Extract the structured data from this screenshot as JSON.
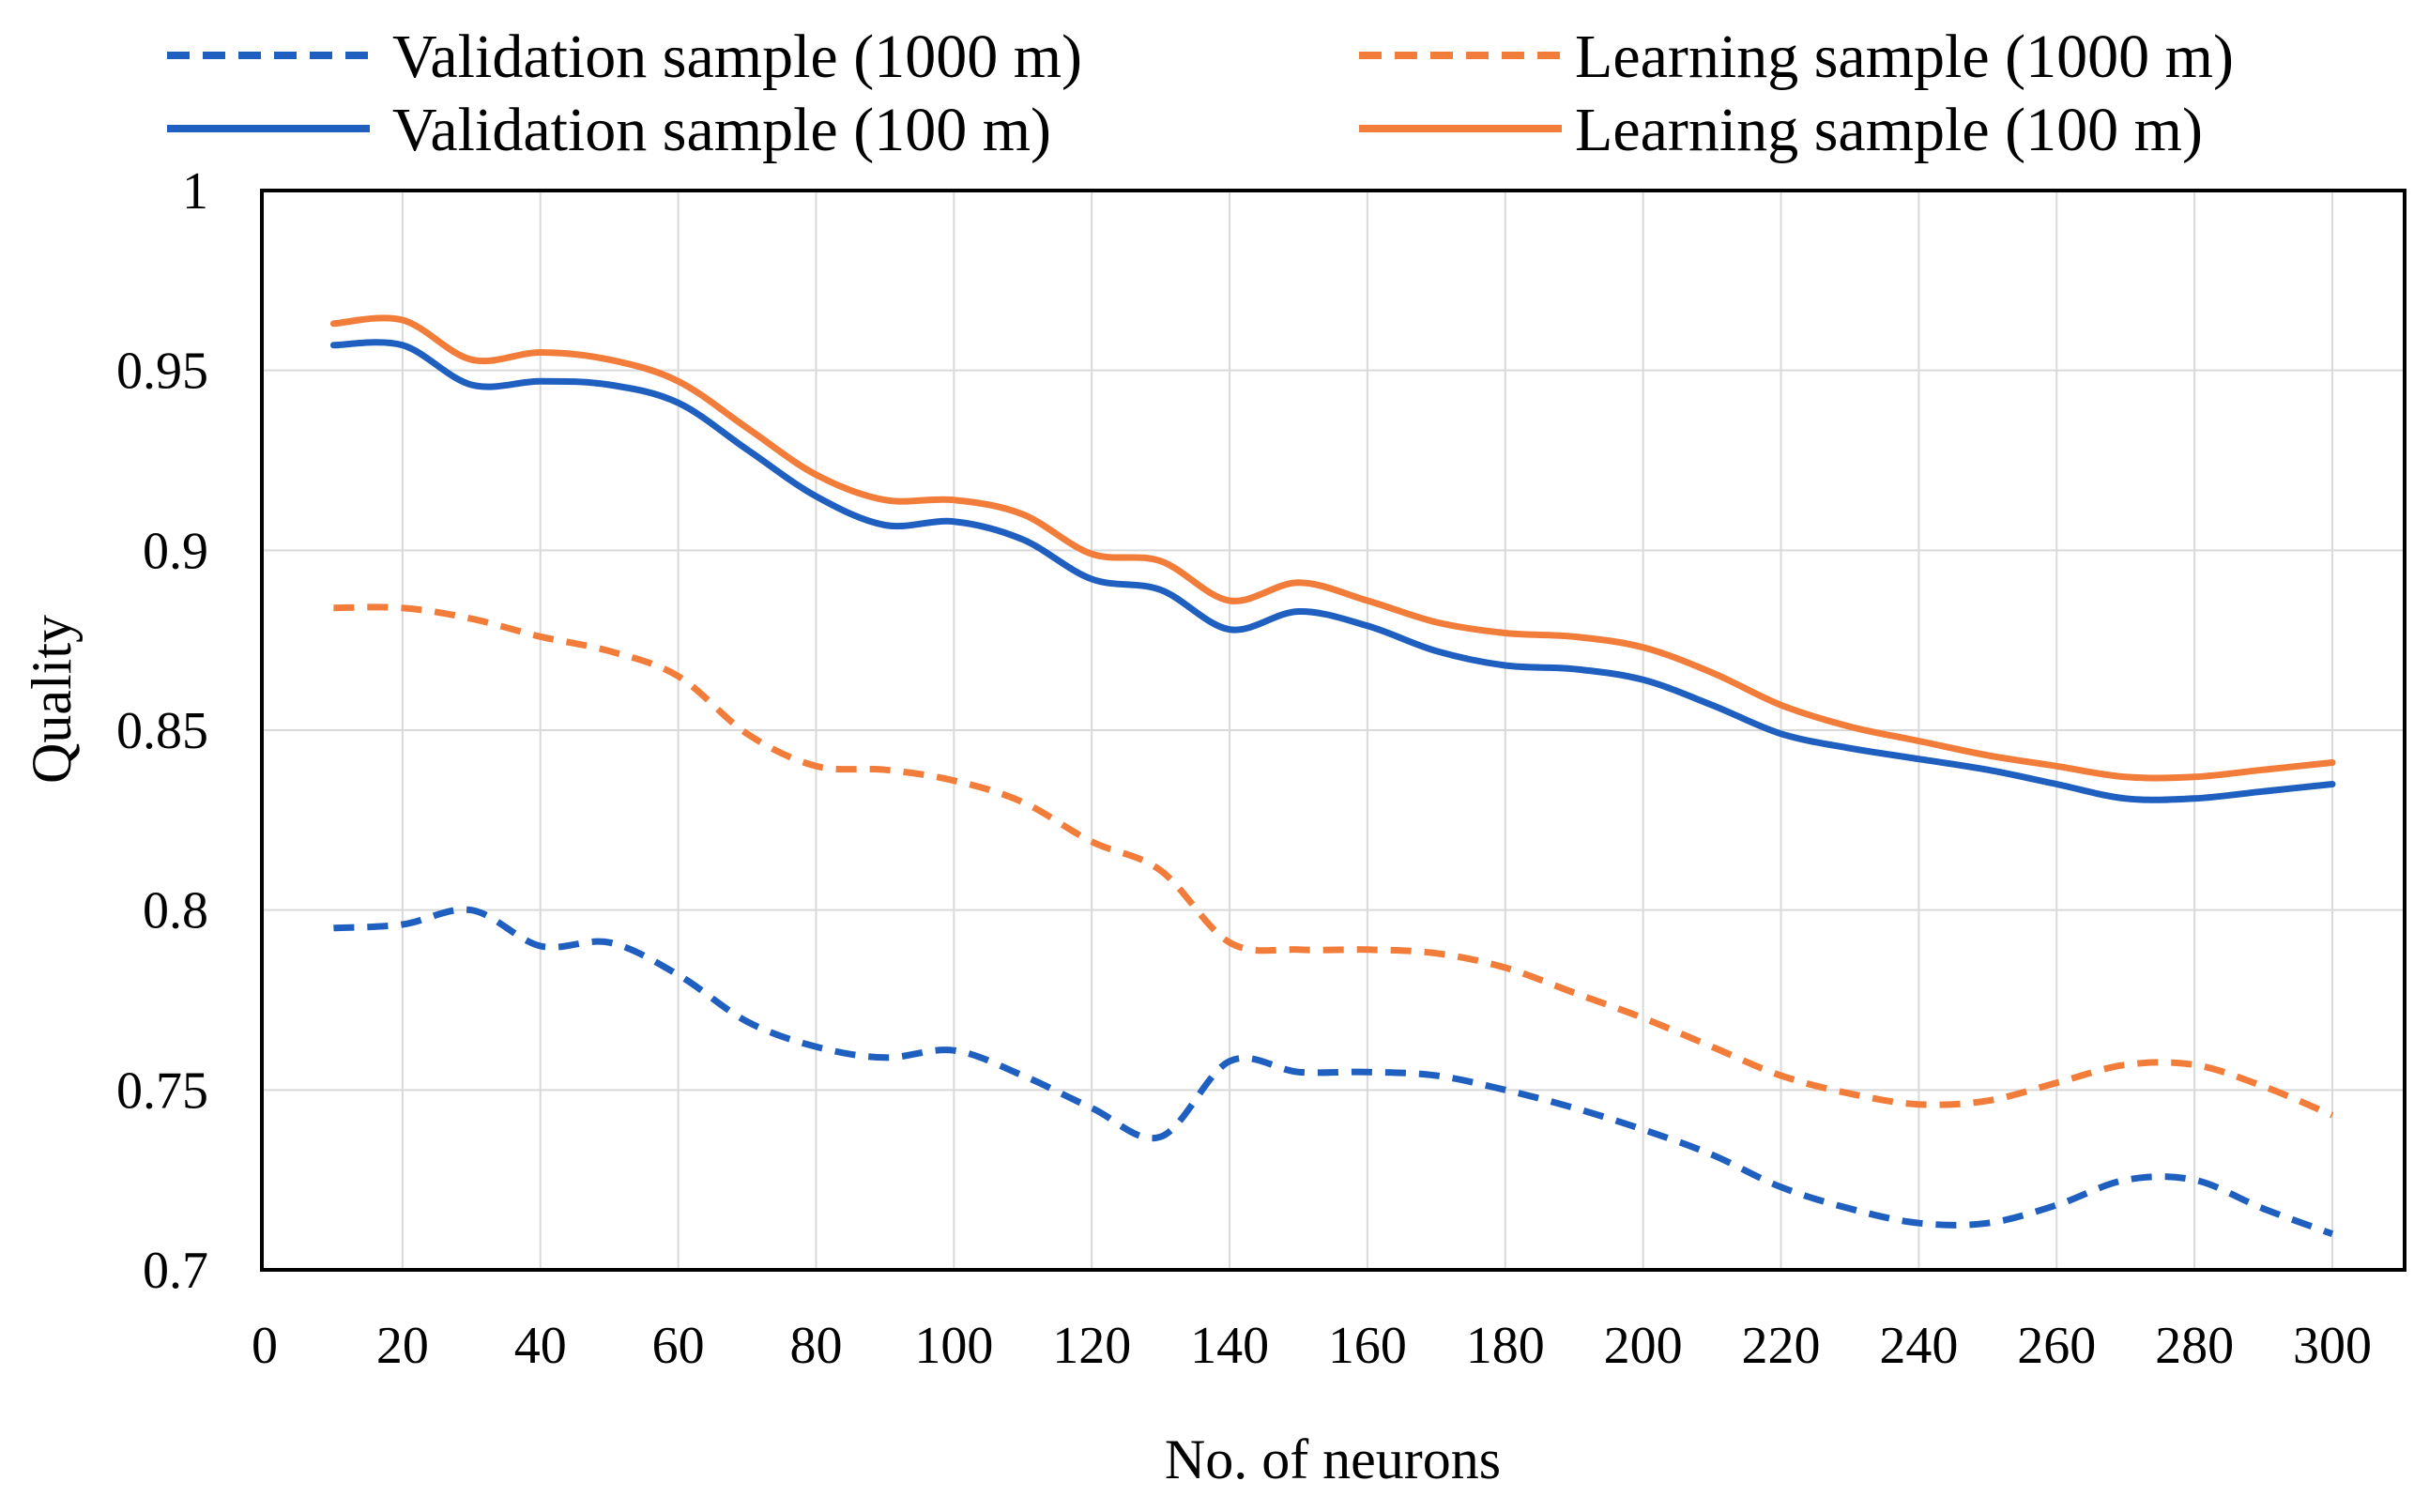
{
  "chart_data": {
    "type": "line",
    "title": "",
    "xlabel": "No. of neurons",
    "ylabel": "Quality",
    "xlim": [
      0,
      305
    ],
    "ylim": [
      0.7,
      1.0
    ],
    "x_ticks": [
      0,
      20,
      40,
      60,
      80,
      100,
      120,
      140,
      160,
      180,
      200,
      220,
      240,
      260,
      280,
      300
    ],
    "y_ticks": [
      0.7,
      0.75,
      0.8,
      0.85,
      0.9,
      0.95,
      1
    ],
    "y_tick_labels": [
      "0.7",
      "0.75",
      "0.8",
      "0.85",
      "0.9",
      "0.95",
      "1"
    ],
    "grid": true,
    "legend_position": "top",
    "x": [
      10,
      20,
      30,
      40,
      50,
      60,
      70,
      80,
      90,
      100,
      110,
      120,
      130,
      140,
      150,
      160,
      170,
      180,
      190,
      200,
      210,
      220,
      230,
      240,
      250,
      260,
      270,
      280,
      290,
      300
    ],
    "series": [
      {
        "name": "Validation sample (1000 m)",
        "color": "#1f5fbf",
        "dashed": true,
        "values": [
          0.795,
          0.796,
          0.8,
          0.79,
          0.791,
          0.782,
          0.769,
          0.762,
          0.759,
          0.761,
          0.754,
          0.745,
          0.737,
          0.758,
          0.755,
          0.755,
          0.754,
          0.75,
          0.745,
          0.739,
          0.732,
          0.723,
          0.717,
          0.713,
          0.713,
          0.718,
          0.725,
          0.725,
          0.717,
          0.71
        ]
      },
      {
        "name": "Learning sample (1000 m)",
        "color": "#f27c3a",
        "dashed": true,
        "values": [
          0.884,
          0.884,
          0.881,
          0.876,
          0.872,
          0.865,
          0.849,
          0.84,
          0.839,
          0.836,
          0.83,
          0.819,
          0.811,
          0.791,
          0.789,
          0.789,
          0.788,
          0.784,
          0.777,
          0.77,
          0.762,
          0.754,
          0.749,
          0.746,
          0.747,
          0.752,
          0.757,
          0.757,
          0.751,
          0.743
        ]
      },
      {
        "name": "Validation sample (100 m)",
        "color": "#1f5fbf",
        "dashed": false,
        "values": [
          0.957,
          0.957,
          0.946,
          0.947,
          0.946,
          0.941,
          0.928,
          0.915,
          0.907,
          0.908,
          0.903,
          0.892,
          0.889,
          0.878,
          0.883,
          0.879,
          0.872,
          0.868,
          0.867,
          0.864,
          0.857,
          0.849,
          0.845,
          0.842,
          0.839,
          0.835,
          0.831,
          0.831,
          0.833,
          0.835
        ]
      },
      {
        "name": "Learning sample (100 m)",
        "color": "#f27c3a",
        "dashed": false,
        "values": [
          0.963,
          0.964,
          0.953,
          0.955,
          0.953,
          0.947,
          0.934,
          0.921,
          0.914,
          0.914,
          0.91,
          0.899,
          0.897,
          0.886,
          0.891,
          0.886,
          0.88,
          0.877,
          0.876,
          0.873,
          0.866,
          0.857,
          0.851,
          0.847,
          0.843,
          0.84,
          0.837,
          0.837,
          0.839,
          0.841
        ]
      }
    ],
    "legend": [
      "Validation sample (1000 m)",
      "Learning sample (1000 m)",
      "Validation sample (100 m)",
      "Learning sample (100 m)"
    ]
  }
}
